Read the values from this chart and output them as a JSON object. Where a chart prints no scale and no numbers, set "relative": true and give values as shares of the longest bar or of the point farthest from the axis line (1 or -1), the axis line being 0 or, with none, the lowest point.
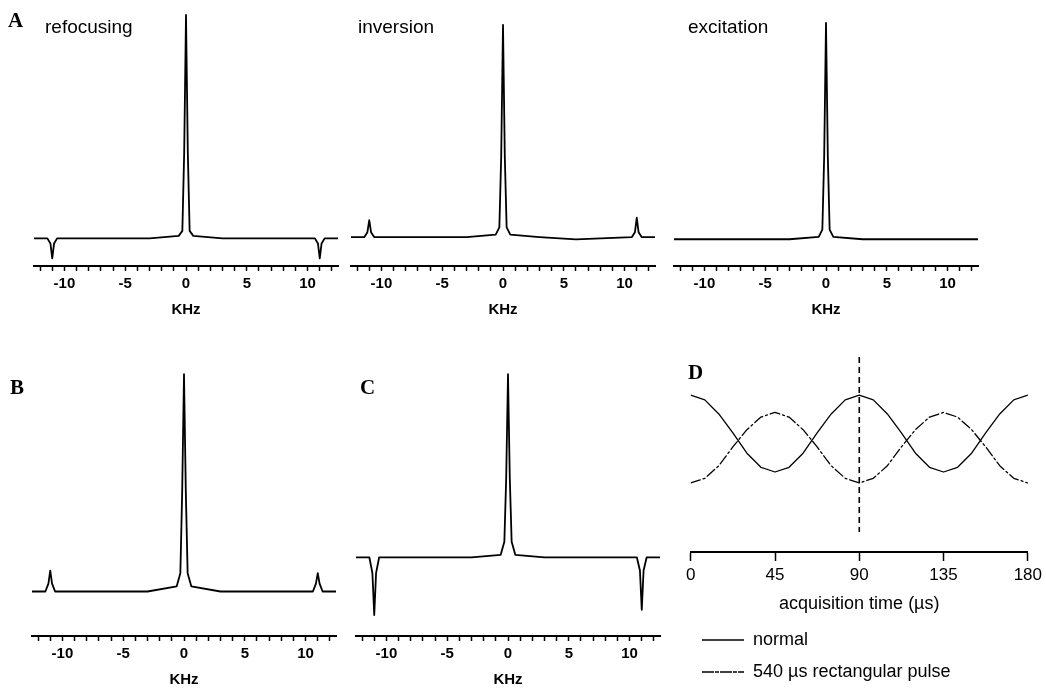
{
  "chart_data": [
    {
      "type": "line",
      "title": "refocusing",
      "xlabel": "KHz",
      "annotations": [
        "A"
      ],
      "relative": true,
      "xlim": [
        -12.5,
        12.5
      ],
      "xticks": [
        {
          "value": -12,
          "label": null
        },
        {
          "value": -11,
          "label": null
        },
        -10,
        {
          "value": -9,
          "label": null
        },
        {
          "value": -8,
          "label": null
        },
        {
          "value": -7,
          "label": null
        },
        {
          "value": -6,
          "label": null
        },
        -5,
        {
          "value": -4,
          "label": null
        },
        {
          "value": -3,
          "label": null
        },
        {
          "value": -2,
          "label": null
        },
        {
          "value": -1,
          "label": null
        },
        0,
        {
          "value": 1,
          "label": null
        },
        {
          "value": 2,
          "label": null
        },
        {
          "value": 3,
          "label": null
        },
        {
          "value": 4,
          "label": null
        },
        5,
        {
          "value": 6,
          "label": null
        },
        {
          "value": 7,
          "label": null
        },
        {
          "value": 8,
          "label": null
        },
        {
          "value": 9,
          "label": null
        },
        10,
        {
          "value": 11,
          "label": null
        },
        {
          "value": 12,
          "label": null
        }
      ],
      "x": [
        -12.5,
        -11.4,
        -11.15,
        -11,
        -10.85,
        -10.6,
        -6,
        -3,
        -0.6,
        -0.3,
        -0.15,
        0,
        0.15,
        0.3,
        0.6,
        3,
        6,
        10.6,
        10.85,
        11,
        11.15,
        11.4,
        12.5
      ],
      "series": [
        {
          "color": "#000000",
          "values": [
            0.11,
            0.11,
            0.09,
            0.03,
            0.09,
            0.11,
            0.11,
            0.11,
            0.12,
            0.14,
            0.45,
            1,
            0.45,
            0.14,
            0.12,
            0.11,
            0.11,
            0.11,
            0.09,
            0.03,
            0.09,
            0.11,
            0.11
          ]
        }
      ]
    },
    {
      "type": "line",
      "title": "inversion",
      "xlabel": "KHz",
      "relative": true,
      "xlim": [
        -12.5,
        12.5
      ],
      "xticks": [
        {
          "value": -12,
          "label": null
        },
        {
          "value": -11,
          "label": null
        },
        -10,
        {
          "value": -9,
          "label": null
        },
        {
          "value": -8,
          "label": null
        },
        {
          "value": -7,
          "label": null
        },
        {
          "value": -6,
          "label": null
        },
        -5,
        {
          "value": -4,
          "label": null
        },
        {
          "value": -3,
          "label": null
        },
        {
          "value": -2,
          "label": null
        },
        {
          "value": -1,
          "label": null
        },
        0,
        {
          "value": 1,
          "label": null
        },
        {
          "value": 2,
          "label": null
        },
        {
          "value": 3,
          "label": null
        },
        {
          "value": 4,
          "label": null
        },
        5,
        {
          "value": 6,
          "label": null
        },
        {
          "value": 7,
          "label": null
        },
        {
          "value": 8,
          "label": null
        },
        {
          "value": 9,
          "label": null
        },
        10,
        {
          "value": 11,
          "label": null
        },
        {
          "value": 12,
          "label": null
        }
      ],
      "x": [
        -12.5,
        -11.4,
        -11.15,
        -11,
        -10.85,
        -10.6,
        -6,
        -3,
        -0.6,
        -0.3,
        -0.15,
        0,
        0.15,
        0.3,
        0.6,
        3,
        6,
        10.6,
        10.85,
        11,
        11.15,
        11.4,
        12.5
      ],
      "series": [
        {
          "color": "#000000",
          "values": [
            0.12,
            0.12,
            0.14,
            0.19,
            0.14,
            0.12,
            0.12,
            0.12,
            0.13,
            0.16,
            0.45,
            1,
            0.45,
            0.16,
            0.13,
            0.12,
            0.11,
            0.12,
            0.14,
            0.2,
            0.14,
            0.12,
            0.12
          ]
        }
      ]
    },
    {
      "type": "line",
      "title": "excitation",
      "xlabel": "KHz",
      "relative": true,
      "xlim": [
        -12.5,
        12.5
      ],
      "xticks": [
        {
          "value": -12,
          "label": null
        },
        {
          "value": -11,
          "label": null
        },
        -10,
        {
          "value": -9,
          "label": null
        },
        {
          "value": -8,
          "label": null
        },
        {
          "value": -7,
          "label": null
        },
        {
          "value": -6,
          "label": null
        },
        -5,
        {
          "value": -4,
          "label": null
        },
        {
          "value": -3,
          "label": null
        },
        {
          "value": -2,
          "label": null
        },
        {
          "value": -1,
          "label": null
        },
        0,
        {
          "value": 1,
          "label": null
        },
        {
          "value": 2,
          "label": null
        },
        {
          "value": 3,
          "label": null
        },
        {
          "value": 4,
          "label": null
        },
        5,
        {
          "value": 6,
          "label": null
        },
        {
          "value": 7,
          "label": null
        },
        {
          "value": 8,
          "label": null
        },
        {
          "value": 9,
          "label": null
        },
        10,
        {
          "value": 11,
          "label": null
        },
        {
          "value": 12,
          "label": null
        }
      ],
      "x": [
        -12.5,
        -11.4,
        -11.15,
        -11,
        -10.85,
        -10.6,
        -6,
        -3,
        -0.6,
        -0.3,
        -0.15,
        0,
        0.15,
        0.3,
        0.6,
        3,
        6,
        10.6,
        10.85,
        11,
        11.15,
        11.4,
        12.5
      ],
      "series": [
        {
          "color": "#000000",
          "values": [
            0.11,
            0.11,
            0.11,
            0.11,
            0.11,
            0.11,
            0.11,
            0.11,
            0.12,
            0.15,
            0.45,
            1,
            0.45,
            0.15,
            0.12,
            0.11,
            0.11,
            0.11,
            0.11,
            0.11,
            0.11,
            0.11,
            0.11
          ]
        }
      ]
    },
    {
      "type": "line",
      "xlabel": "KHz",
      "annotations": [
        "B"
      ],
      "relative": true,
      "xlim": [
        -12.5,
        12.5
      ],
      "xticks": [
        {
          "value": -12,
          "label": null
        },
        {
          "value": -11,
          "label": null
        },
        -10,
        {
          "value": -9,
          "label": null
        },
        {
          "value": -8,
          "label": null
        },
        {
          "value": -7,
          "label": null
        },
        {
          "value": -6,
          "label": null
        },
        -5,
        {
          "value": -4,
          "label": null
        },
        {
          "value": -3,
          "label": null
        },
        {
          "value": -2,
          "label": null
        },
        {
          "value": -1,
          "label": null
        },
        0,
        {
          "value": 1,
          "label": null
        },
        {
          "value": 2,
          "label": null
        },
        {
          "value": 3,
          "label": null
        },
        {
          "value": 4,
          "label": null
        },
        5,
        {
          "value": 6,
          "label": null
        },
        {
          "value": 7,
          "label": null
        },
        {
          "value": 8,
          "label": null
        },
        {
          "value": 9,
          "label": null
        },
        10,
        {
          "value": 11,
          "label": null
        },
        {
          "value": 12,
          "label": null
        }
      ],
      "x": [
        -12.5,
        -11.4,
        -11.15,
        -11,
        -10.85,
        -10.6,
        -6,
        -3,
        -0.6,
        -0.3,
        -0.15,
        0,
        0.15,
        0.3,
        0.6,
        3,
        6,
        10.6,
        10.85,
        11,
        11.15,
        11.4,
        12.5
      ],
      "series": [
        {
          "color": "#000000",
          "values": [
            0.17,
            0.17,
            0.2,
            0.25,
            0.2,
            0.17,
            0.17,
            0.17,
            0.19,
            0.24,
            0.55,
            1,
            0.55,
            0.24,
            0.19,
            0.17,
            0.17,
            0.17,
            0.2,
            0.24,
            0.2,
            0.17,
            0.17
          ]
        }
      ]
    },
    {
      "type": "line",
      "xlabel": "KHz",
      "annotations": [
        "C"
      ],
      "relative": true,
      "xlim": [
        -12.5,
        12.5
      ],
      "xticks": [
        {
          "value": -12,
          "label": null
        },
        {
          "value": -11,
          "label": null
        },
        -10,
        {
          "value": -9,
          "label": null
        },
        {
          "value": -8,
          "label": null
        },
        {
          "value": -7,
          "label": null
        },
        {
          "value": -6,
          "label": null
        },
        -5,
        {
          "value": -4,
          "label": null
        },
        {
          "value": -3,
          "label": null
        },
        {
          "value": -2,
          "label": null
        },
        {
          "value": -1,
          "label": null
        },
        0,
        {
          "value": 1,
          "label": null
        },
        {
          "value": 2,
          "label": null
        },
        {
          "value": 3,
          "label": null
        },
        {
          "value": 4,
          "label": null
        },
        5,
        {
          "value": 6,
          "label": null
        },
        {
          "value": 7,
          "label": null
        },
        {
          "value": 8,
          "label": null
        },
        {
          "value": 9,
          "label": null
        },
        10,
        {
          "value": 11,
          "label": null
        },
        {
          "value": 12,
          "label": null
        }
      ],
      "x": [
        -12.5,
        -11.4,
        -11.15,
        -11,
        -10.85,
        -10.6,
        -6,
        -3,
        -0.6,
        -0.3,
        -0.15,
        0,
        0.15,
        0.3,
        0.6,
        3,
        6,
        10.6,
        10.85,
        11,
        11.15,
        11.4,
        12.5
      ],
      "series": [
        {
          "color": "#000000",
          "values": [
            0.3,
            0.3,
            0.24,
            0.08,
            0.24,
            0.3,
            0.3,
            0.3,
            0.31,
            0.36,
            0.6,
            1,
            0.6,
            0.36,
            0.31,
            0.3,
            0.3,
            0.3,
            0.25,
            0.1,
            0.25,
            0.3,
            0.3
          ]
        }
      ]
    },
    {
      "type": "line",
      "xlabel": "acquisition time (µs)",
      "annotations": [
        "D"
      ],
      "relative": true,
      "legend": "bottom",
      "xlim": [
        0,
        180
      ],
      "xticks": [
        0,
        45,
        90,
        135,
        180
      ],
      "x": [
        0,
        7.5,
        15,
        22.5,
        30,
        37.5,
        45,
        52.5,
        60,
        67.5,
        75,
        82.5,
        90,
        97.5,
        105,
        112.5,
        120,
        127.5,
        135,
        142.5,
        150,
        157.5,
        165,
        172.5,
        180
      ],
      "ref_lines": [
        {
          "axis": "x",
          "value": 90,
          "color": "#000000",
          "line_style": "dashed"
        }
      ],
      "series": [
        {
          "name": "normal",
          "color": "#000000",
          "line_style": "solid",
          "values": [
            1,
            0.97,
            0.88,
            0.76,
            0.63,
            0.54,
            0.51,
            0.54,
            0.63,
            0.76,
            0.88,
            0.97,
            1,
            0.97,
            0.88,
            0.76,
            0.63,
            0.54,
            0.51,
            0.54,
            0.63,
            0.76,
            0.88,
            0.97,
            1
          ]
        },
        {
          "name": "540 µs rectangular pulse",
          "color": "#000000",
          "line_style": "dashdot",
          "values": [
            0.44,
            0.47,
            0.55,
            0.67,
            0.78,
            0.86,
            0.89,
            0.86,
            0.78,
            0.67,
            0.55,
            0.47,
            0.44,
            0.47,
            0.55,
            0.67,
            0.78,
            0.86,
            0.89,
            0.86,
            0.78,
            0.67,
            0.55,
            0.47,
            0.44
          ]
        }
      ]
    }
  ]
}
